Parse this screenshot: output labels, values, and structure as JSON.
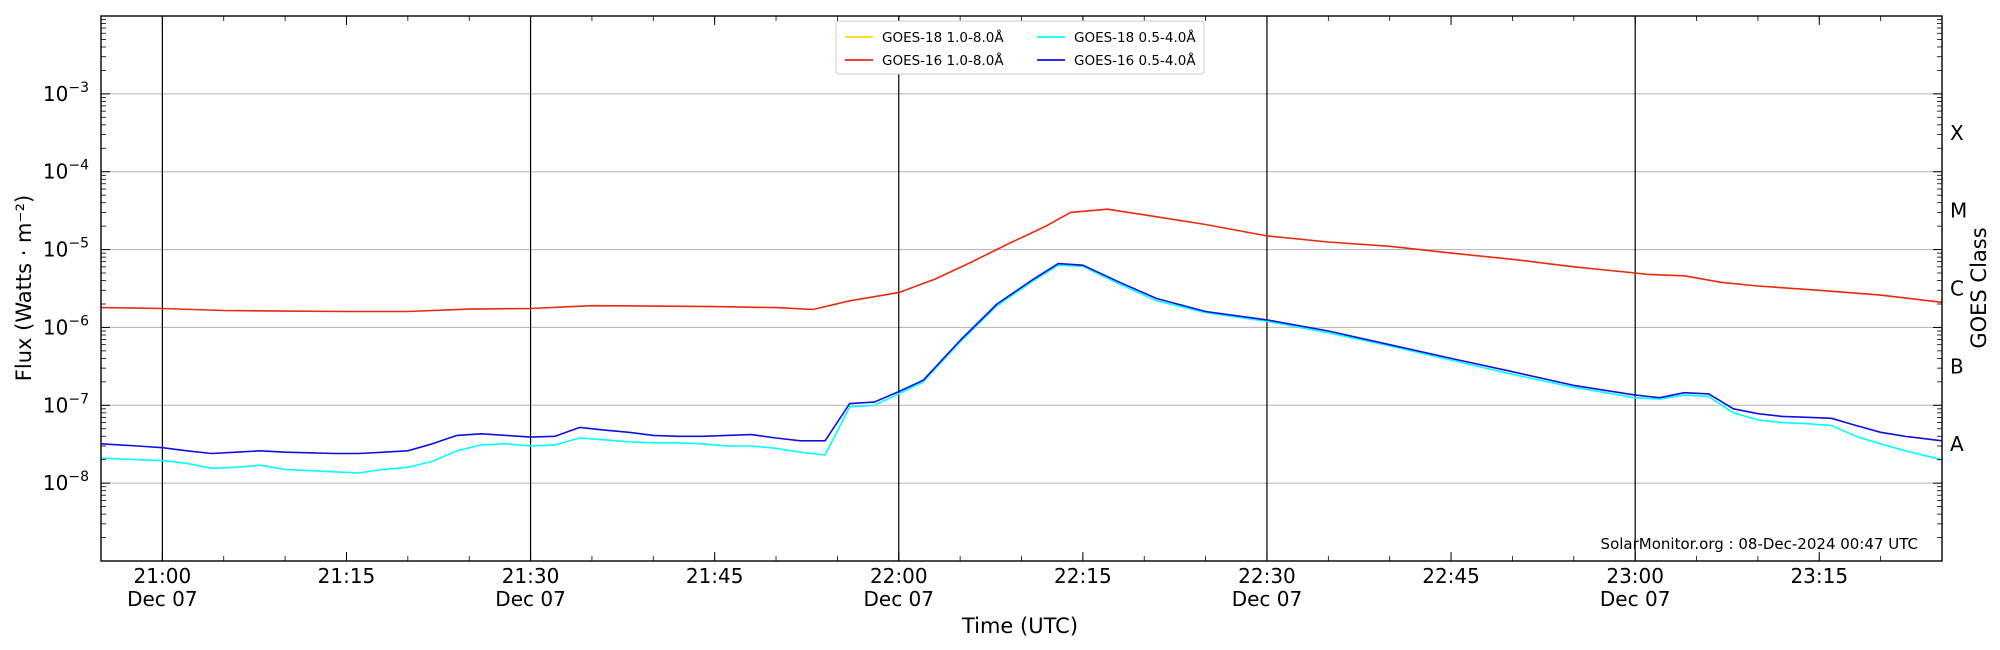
{
  "chart_data": {
    "type": "line",
    "title": "",
    "xlabel": "Time (UTC)",
    "ylabel": "Flux (Watts · m⁻²)",
    "y2label": "GOES Class",
    "y_scale": "log",
    "ylim": [
      1e-09,
      0.01
    ],
    "xlim": [
      "2024-12-07T20:55",
      "2024-12-07T23:25"
    ],
    "grid": true,
    "legend_position": "top-center",
    "credit": "SolarMonitor.org : 08-Dec-2024 00:47 UTC",
    "ytick_bases": [
      "10",
      "10",
      "10",
      "10",
      "10",
      "10"
    ],
    "ytick_exponents": [
      "−3",
      "−4",
      "−5",
      "−6",
      "−7",
      "−8"
    ],
    "ytick_values": [
      0.001,
      0.0001,
      1e-05,
      1e-06,
      1e-07,
      1e-08
    ],
    "goes_classes": [
      {
        "label": "X",
        "flux": 0.0001
      },
      {
        "label": "M",
        "flux": 1e-05
      },
      {
        "label": "C",
        "flux": 1e-06
      },
      {
        "label": "B",
        "flux": 1e-07
      },
      {
        "label": "A",
        "flux": 1e-08
      }
    ],
    "x_ticks": [
      {
        "time": "2024-12-07T21:00",
        "label": "21:00",
        "sublabel": "Dec 07",
        "vline": true
      },
      {
        "time": "2024-12-07T21:15",
        "label": "21:15",
        "sublabel": "",
        "vline": false
      },
      {
        "time": "2024-12-07T21:30",
        "label": "21:30",
        "sublabel": "Dec 07",
        "vline": true
      },
      {
        "time": "2024-12-07T21:45",
        "label": "21:45",
        "sublabel": "",
        "vline": false
      },
      {
        "time": "2024-12-07T22:00",
        "label": "22:00",
        "sublabel": "Dec 07",
        "vline": true
      },
      {
        "time": "2024-12-07T22:15",
        "label": "22:15",
        "sublabel": "",
        "vline": false
      },
      {
        "time": "2024-12-07T22:30",
        "label": "22:30",
        "sublabel": "Dec 07",
        "vline": true
      },
      {
        "time": "2024-12-07T22:45",
        "label": "22:45",
        "sublabel": "",
        "vline": false
      },
      {
        "time": "2024-12-07T23:00",
        "label": "23:00",
        "sublabel": "Dec 07",
        "vline": true
      },
      {
        "time": "2024-12-07T23:15",
        "label": "23:15",
        "sublabel": "",
        "vline": false
      }
    ],
    "series": [
      {
        "name": "GOES-18 1.0-8.0Å",
        "color": "#ffd700",
        "x": [],
        "values": []
      },
      {
        "name": "GOES-16 1.0-8.0Å",
        "color": "#e8290b",
        "x": [
          "2024-12-07T20:55",
          "2024-12-07T21:00",
          "2024-12-07T21:05",
          "2024-12-07T21:10",
          "2024-12-07T21:15",
          "2024-12-07T21:20",
          "2024-12-07T21:25",
          "2024-12-07T21:30",
          "2024-12-07T21:35",
          "2024-12-07T21:40",
          "2024-12-07T21:45",
          "2024-12-07T21:50",
          "2024-12-07T21:53",
          "2024-12-07T21:56",
          "2024-12-07T22:00",
          "2024-12-07T22:03",
          "2024-12-07T22:06",
          "2024-12-07T22:09",
          "2024-12-07T22:12",
          "2024-12-07T22:14",
          "2024-12-07T22:17",
          "2024-12-07T22:20",
          "2024-12-07T22:25",
          "2024-12-07T22:30",
          "2024-12-07T22:35",
          "2024-12-07T22:40",
          "2024-12-07T22:45",
          "2024-12-07T22:50",
          "2024-12-07T22:55",
          "2024-12-07T23:00",
          "2024-12-07T23:01",
          "2024-12-07T23:04",
          "2024-12-07T23:07",
          "2024-12-07T23:10",
          "2024-12-07T23:15",
          "2024-12-07T23:20",
          "2024-12-07T23:25"
        ],
        "values": [
          1.8e-06,
          1.75e-06,
          1.65e-06,
          1.62e-06,
          1.6e-06,
          1.6e-06,
          1.72e-06,
          1.75e-06,
          1.9e-06,
          1.88e-06,
          1.85e-06,
          1.8e-06,
          1.7e-06,
          2.2e-06,
          2.8e-06,
          4.2e-06,
          7e-06,
          1.2e-05,
          2e-05,
          3e-05,
          3.3e-05,
          2.8e-05,
          2.1e-05,
          1.5e-05,
          1.25e-05,
          1.1e-05,
          9e-06,
          7.5e-06,
          6e-06,
          5e-06,
          4.8e-06,
          4.6e-06,
          3.8e-06,
          3.4e-06,
          3e-06,
          2.6e-06,
          2.1e-06
        ]
      },
      {
        "name": "GOES-18 0.5-4.0Å",
        "color": "#00ffff",
        "x": [
          "2024-12-07T20:55",
          "2024-12-07T20:58",
          "2024-12-07T21:00",
          "2024-12-07T21:02",
          "2024-12-07T21:04",
          "2024-12-07T21:06",
          "2024-12-07T21:08",
          "2024-12-07T21:10",
          "2024-12-07T21:12",
          "2024-12-07T21:14",
          "2024-12-07T21:16",
          "2024-12-07T21:18",
          "2024-12-07T21:20",
          "2024-12-07T21:22",
          "2024-12-07T21:24",
          "2024-12-07T21:26",
          "2024-12-07T21:28",
          "2024-12-07T21:30",
          "2024-12-07T21:32",
          "2024-12-07T21:34",
          "2024-12-07T21:36",
          "2024-12-07T21:38",
          "2024-12-07T21:40",
          "2024-12-07T21:42",
          "2024-12-07T21:44",
          "2024-12-07T21:46",
          "2024-12-07T21:48",
          "2024-12-07T21:50",
          "2024-12-07T21:52",
          "2024-12-07T21:54",
          "2024-12-07T21:56",
          "2024-12-07T21:58",
          "2024-12-07T22:00",
          "2024-12-07T22:02",
          "2024-12-07T22:05",
          "2024-12-07T22:08",
          "2024-12-07T22:11",
          "2024-12-07T22:13",
          "2024-12-07T22:15",
          "2024-12-07T22:18",
          "2024-12-07T22:21",
          "2024-12-07T22:25",
          "2024-12-07T22:30",
          "2024-12-07T22:35",
          "2024-12-07T22:40",
          "2024-12-07T22:45",
          "2024-12-07T22:50",
          "2024-12-07T22:55",
          "2024-12-07T23:00",
          "2024-12-07T23:02",
          "2024-12-07T23:04",
          "2024-12-07T23:06",
          "2024-12-07T23:08",
          "2024-12-07T23:10",
          "2024-12-07T23:12",
          "2024-12-07T23:14",
          "2024-12-07T23:16",
          "2024-12-07T23:18",
          "2024-12-07T23:20",
          "2024-12-07T23:22",
          "2024-12-07T23:25"
        ],
        "values": [
          2.1e-08,
          2e-08,
          1.95e-08,
          1.8e-08,
          1.55e-08,
          1.6e-08,
          1.7e-08,
          1.5e-08,
          1.45e-08,
          1.4e-08,
          1.35e-08,
          1.5e-08,
          1.6e-08,
          1.9e-08,
          2.6e-08,
          3.1e-08,
          3.2e-08,
          3e-08,
          3.1e-08,
          3.8e-08,
          3.6e-08,
          3.4e-08,
          3.3e-08,
          3.3e-08,
          3.2e-08,
          3e-08,
          3e-08,
          2.8e-08,
          2.5e-08,
          2.3e-08,
          9.5e-08,
          1e-07,
          1.4e-07,
          2e-07,
          6.5e-07,
          1.9e-06,
          4e-06,
          6.3e-06,
          6.1e-06,
          3.6e-06,
          2.2e-06,
          1.55e-06,
          1.2e-06,
          8.5e-07,
          5.8e-07,
          3.8e-07,
          2.5e-07,
          1.7e-07,
          1.25e-07,
          1.2e-07,
          1.35e-07,
          1.3e-07,
          8e-08,
          6.5e-08,
          6e-08,
          5.8e-08,
          5.5e-08,
          4e-08,
          3.2e-08,
          2.6e-08,
          2e-08
        ]
      },
      {
        "name": "GOES-16 0.5-4.0Å",
        "color": "#1010e0",
        "x": [
          "2024-12-07T20:55",
          "2024-12-07T20:58",
          "2024-12-07T21:00",
          "2024-12-07T21:02",
          "2024-12-07T21:04",
          "2024-12-07T21:06",
          "2024-12-07T21:08",
          "2024-12-07T21:10",
          "2024-12-07T21:12",
          "2024-12-07T21:14",
          "2024-12-07T21:16",
          "2024-12-07T21:18",
          "2024-12-07T21:20",
          "2024-12-07T21:22",
          "2024-12-07T21:24",
          "2024-12-07T21:26",
          "2024-12-07T21:28",
          "2024-12-07T21:30",
          "2024-12-07T21:32",
          "2024-12-07T21:34",
          "2024-12-07T21:36",
          "2024-12-07T21:38",
          "2024-12-07T21:40",
          "2024-12-07T21:42",
          "2024-12-07T21:44",
          "2024-12-07T21:46",
          "2024-12-07T21:48",
          "2024-12-07T21:50",
          "2024-12-07T21:52",
          "2024-12-07T21:54",
          "2024-12-07T21:56",
          "2024-12-07T21:58",
          "2024-12-07T22:00",
          "2024-12-07T22:02",
          "2024-12-07T22:05",
          "2024-12-07T22:08",
          "2024-12-07T22:11",
          "2024-12-07T22:13",
          "2024-12-07T22:15",
          "2024-12-07T22:18",
          "2024-12-07T22:21",
          "2024-12-07T22:25",
          "2024-12-07T22:30",
          "2024-12-07T22:35",
          "2024-12-07T22:40",
          "2024-12-07T22:45",
          "2024-12-07T22:50",
          "2024-12-07T22:55",
          "2024-12-07T23:00",
          "2024-12-07T23:02",
          "2024-12-07T23:04",
          "2024-12-07T23:06",
          "2024-12-07T23:08",
          "2024-12-07T23:10",
          "2024-12-07T23:12",
          "2024-12-07T23:14",
          "2024-12-07T23:16",
          "2024-12-07T23:18",
          "2024-12-07T23:20",
          "2024-12-07T23:22",
          "2024-12-07T23:25"
        ],
        "values": [
          3.2e-08,
          3e-08,
          2.85e-08,
          2.6e-08,
          2.4e-08,
          2.5e-08,
          2.6e-08,
          2.5e-08,
          2.45e-08,
          2.4e-08,
          2.4e-08,
          2.5e-08,
          2.6e-08,
          3.2e-08,
          4.1e-08,
          4.3e-08,
          4.1e-08,
          3.9e-08,
          4e-08,
          5.2e-08,
          4.8e-08,
          4.5e-08,
          4.1e-08,
          4e-08,
          4e-08,
          4.1e-08,
          4.2e-08,
          3.8e-08,
          3.5e-08,
          3.5e-08,
          1.05e-07,
          1.1e-07,
          1.5e-07,
          2.1e-07,
          6.8e-07,
          2e-06,
          4.2e-06,
          6.6e-06,
          6.3e-06,
          3.8e-06,
          2.35e-06,
          1.6e-06,
          1.25e-06,
          9e-07,
          6e-07,
          4e-07,
          2.7e-07,
          1.8e-07,
          1.35e-07,
          1.25e-07,
          1.45e-07,
          1.4e-07,
          9e-08,
          7.8e-08,
          7.2e-08,
          7e-08,
          6.8e-08,
          5.5e-08,
          4.5e-08,
          4e-08,
          3.5e-08
        ]
      }
    ]
  }
}
